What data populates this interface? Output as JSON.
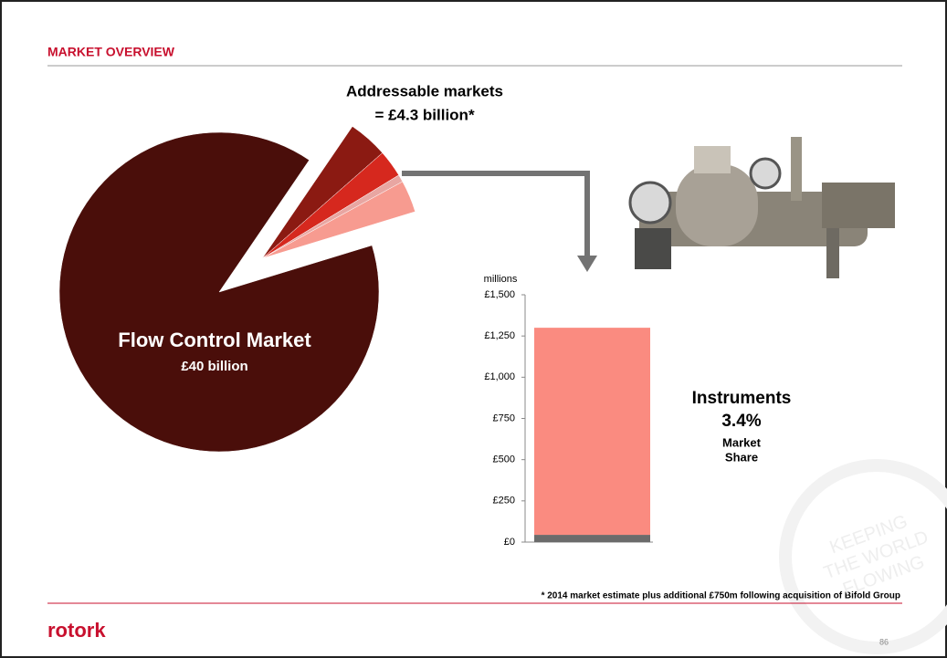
{
  "header": {
    "title": "MARKET OVERVIEW"
  },
  "chart_data": [
    {
      "type": "pie",
      "categories": [
        "Flow Control Market",
        null,
        null,
        null,
        null
      ],
      "values": [
        35.7,
        1.6,
        1.1,
        0.3,
        1.3
      ],
      "colors": [
        "#4a0e0a",
        "#8b1a12",
        "#d6281e",
        "#e8a6a2",
        "#f79b90"
      ],
      "annotations": [
        "£40 billion",
        "Addressable markets",
        "= £4.3 billion*"
      ]
    },
    {
      "type": "bar",
      "stacked": true,
      "ylabel": "millions",
      "categories": [
        null
      ],
      "series": [
        {
          "color": "#6b6b6b",
          "values": [
            44
          ]
        },
        {
          "color": "#fa8b80",
          "values": [
            1256
          ]
        }
      ],
      "ylim": [
        0,
        1500
      ],
      "yticks": [
        {
          "value": 0,
          "label": "£0"
        },
        {
          "value": 250,
          "label": "£250"
        },
        {
          "value": 500,
          "label": "£500"
        },
        {
          "value": 750,
          "label": "£750"
        },
        {
          "value": 1000,
          "label": "£1,000"
        },
        {
          "value": 1250,
          "label": "£1,250"
        },
        {
          "value": 1500,
          "label": "£1,500"
        }
      ],
      "annotations": [
        "Instruments",
        "3.4%",
        "Market",
        "Share"
      ]
    }
  ],
  "watermark": {
    "lines": [
      "KEEPING",
      "THE WORLD",
      "FLOWING"
    ]
  },
  "footer": {
    "note": "* 2014 market estimate plus additional £750m following acquisition of Bifold Group",
    "logo": "rotork",
    "page": "86"
  }
}
